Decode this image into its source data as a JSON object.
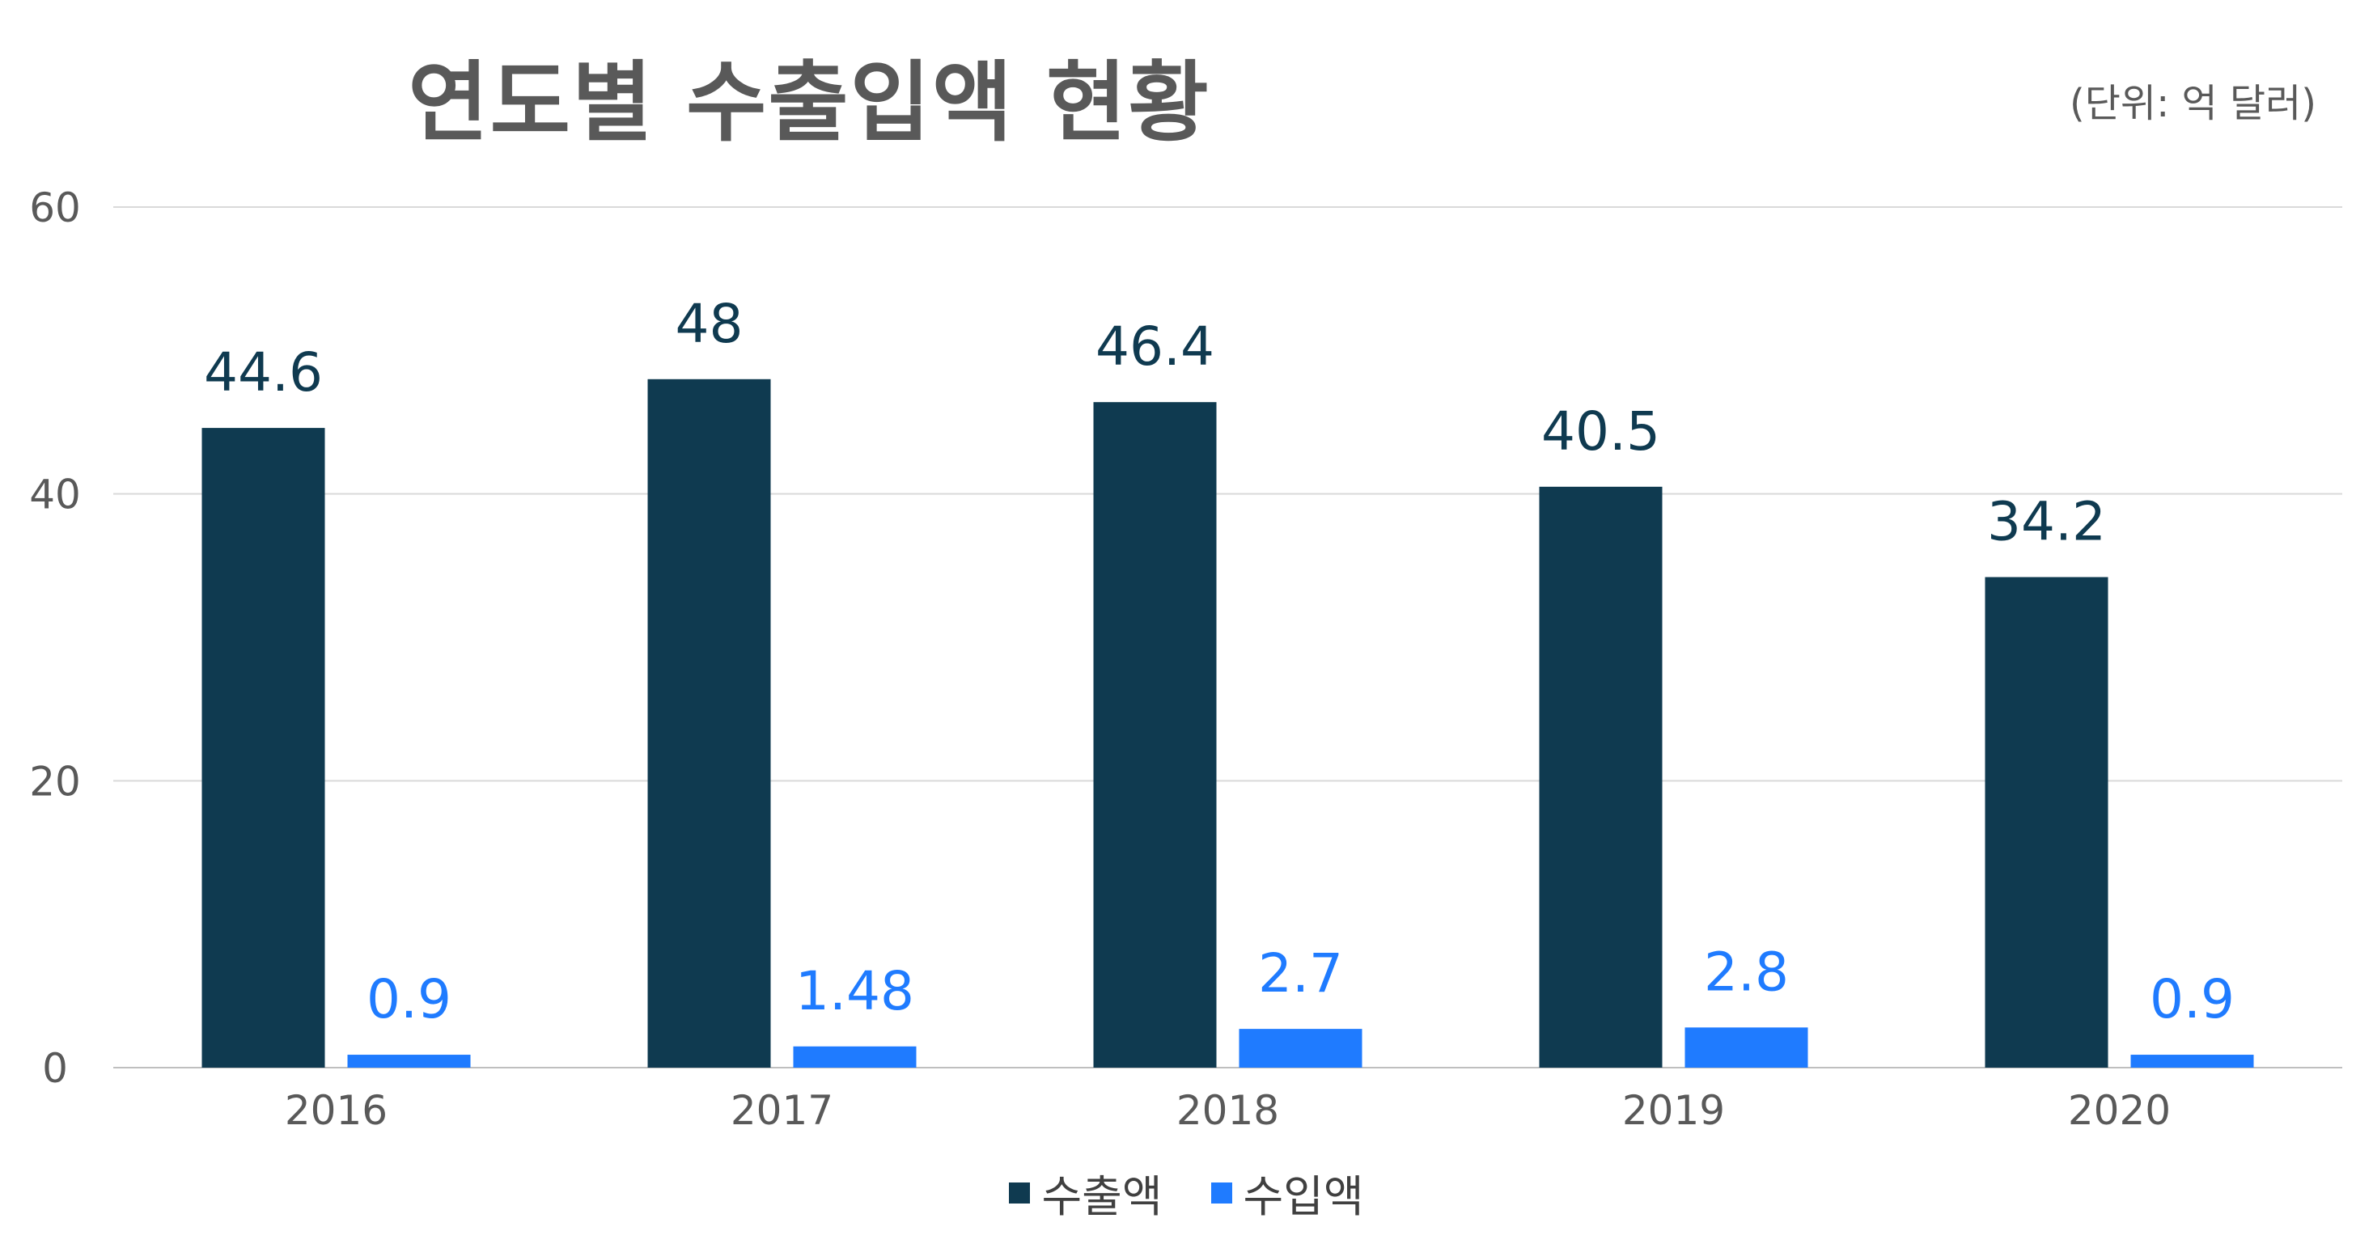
{
  "chart_data": {
    "type": "bar",
    "title": "연도별 수출입액 현황",
    "unit_note": "(단위: 억 달러)",
    "xlabel": "",
    "ylabel": "",
    "categories": [
      "2016",
      "2017",
      "2018",
      "2019",
      "2020"
    ],
    "ylim": [
      0,
      60
    ],
    "yticks": [
      0,
      20,
      40,
      60
    ],
    "grid": true,
    "legend_position": "bottom",
    "series": [
      {
        "name": "수출액",
        "color": "#0f3a50",
        "values": [
          44.6,
          48,
          46.4,
          40.5,
          34.2
        ],
        "labels": [
          "44.6",
          "48",
          "46.4",
          "40.5",
          "34.2"
        ]
      },
      {
        "name": "수입액",
        "color": "#1f7bff",
        "values": [
          0.9,
          1.48,
          2.7,
          2.8,
          0.9
        ],
        "labels": [
          "0.9",
          "1.48",
          "2.7",
          "2.8",
          "0.9"
        ]
      }
    ]
  }
}
